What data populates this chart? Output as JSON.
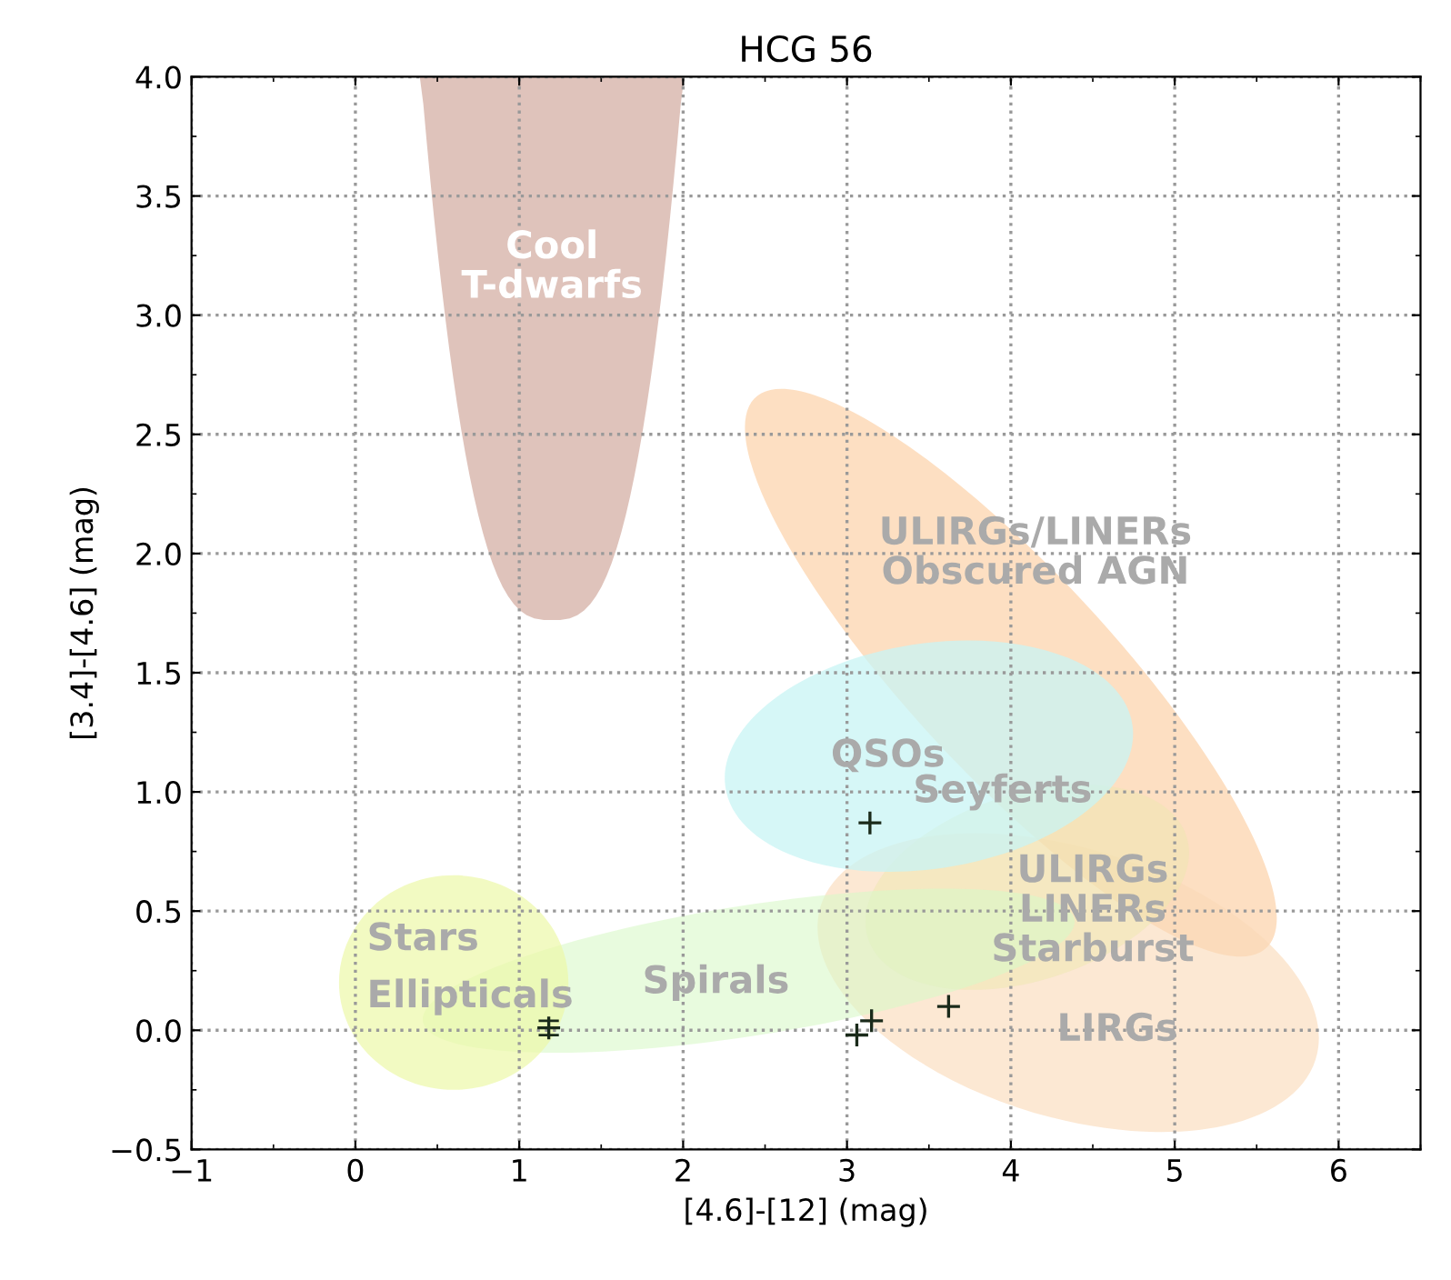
{
  "chart_data": {
    "type": "scatter",
    "title": "HCG 56",
    "xlabel": "[4.6]-[12] (mag)",
    "ylabel": "[3.4]-[4.6] (mag)",
    "x": [
      1.18,
      3.14,
      3.15,
      3.06,
      3.62
    ],
    "values": [
      0.01,
      0.87,
      0.04,
      -0.02,
      0.1
    ],
    "errors": [
      0.03,
      null,
      null,
      null,
      null
    ],
    "color": "#1a2a1a",
    "marker": "cross",
    "xlim": [
      -1,
      6.5
    ],
    "xticks": [
      {
        "value": -1,
        "label": "−1"
      },
      0,
      1,
      2,
      3,
      4,
      5,
      6
    ],
    "ylim": [
      -0.5,
      4.0
    ],
    "yticks": [
      {
        "value": -0.5,
        "label": "−0.5"
      },
      {
        "value": 0.0,
        "label": "0.0"
      },
      0.5,
      {
        "value": 1.0,
        "label": "1.0"
      },
      1.5,
      {
        "value": 2.0,
        "label": "2.0"
      },
      2.5,
      {
        "value": 3.0,
        "label": "3.0"
      },
      3.5,
      {
        "value": 4.0,
        "label": "4.0"
      }
    ],
    "grid": true,
    "annotations": [
      "Cool\nT-dwarfs",
      "ULIRGs/LINERs\nObscured AGN",
      "QSOs",
      "Seyferts",
      "ULIRGs\nLINERs\nStarburst",
      "Stars",
      "Ellipticals",
      "Spirals",
      "LIRGs"
    ]
  }
}
